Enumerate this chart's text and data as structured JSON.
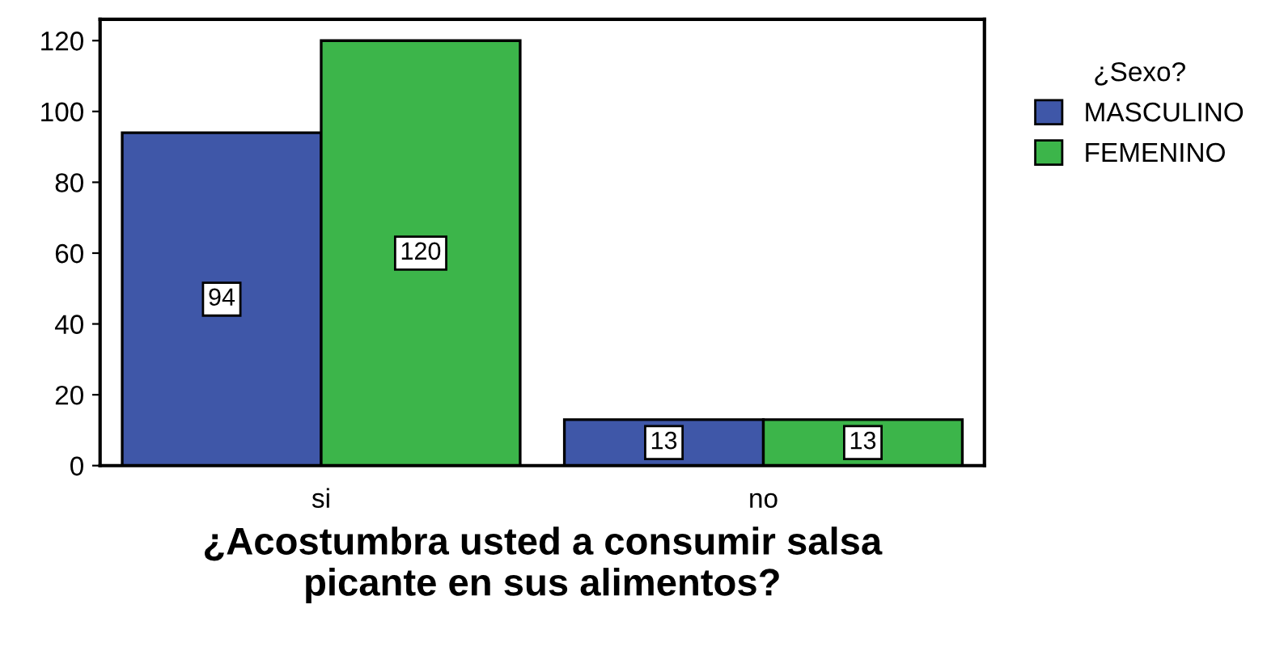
{
  "chart_data": {
    "type": "bar",
    "xlabel": "¿Acostumbra usted a consumir salsa\npicante en sus alimentos?",
    "legend_title": "¿Sexo?",
    "categories": [
      "si",
      "no"
    ],
    "series": [
      {
        "name": "MASCULINO",
        "color": "#3f57a8",
        "values": [
          94,
          13
        ]
      },
      {
        "name": "FEMENINO",
        "color": "#3cb54a",
        "values": [
          120,
          13
        ]
      }
    ],
    "ylim": [
      0,
      126
    ],
    "yticks": [
      0,
      20,
      40,
      60,
      80,
      100,
      120
    ],
    "data_labels": true,
    "legend": "top right",
    "grid": false
  }
}
